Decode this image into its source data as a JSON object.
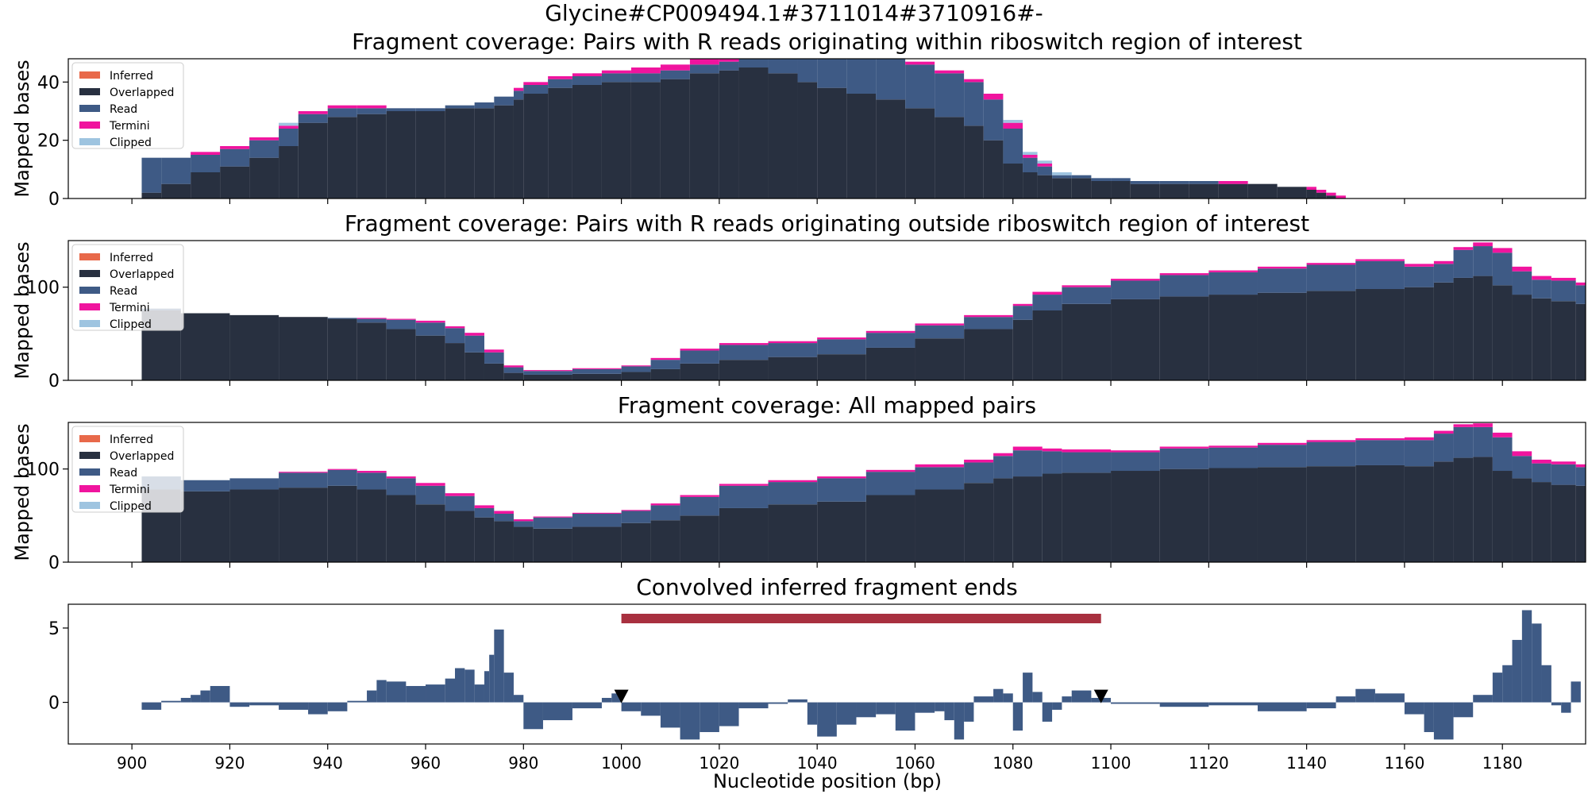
{
  "suptitle": "Glycine#CP009494.1#3711014#3710916#-",
  "colors": {
    "inferred": "#E8694A",
    "overlapped": "#283040",
    "read": "#3E5A85",
    "termini": "#F0149E",
    "clipped": "#9EC4E0",
    "region_bar": "#A8303F",
    "convolved": "#3E5A85",
    "marker": "#000000"
  },
  "legend_labels": [
    "Inferred",
    "Overlapped",
    "Read",
    "Termini",
    "Clipped"
  ],
  "xlabel": "Nucleotide position (bp)",
  "chart_data": [
    {
      "type": "area",
      "title": "Fragment coverage: Pairs with R reads originating within riboswitch region of interest",
      "ylabel": "Mapped bases",
      "xlim": [
        887,
        1197
      ],
      "ylim": [
        0,
        48
      ],
      "yticks": [
        0,
        20,
        40
      ],
      "xticks": [
        900,
        920,
        940,
        960,
        980,
        1000,
        1020,
        1040,
        1060,
        1080,
        1100,
        1120,
        1140,
        1160,
        1180
      ],
      "legend": "top-left",
      "x": [
        902,
        906,
        912,
        918,
        924,
        930,
        934,
        940,
        946,
        952,
        958,
        964,
        970,
        974,
        978,
        980,
        985,
        990,
        996,
        1002,
        1008,
        1014,
        1020,
        1024,
        1030,
        1036,
        1040,
        1046,
        1052,
        1058,
        1064,
        1070,
        1074,
        1078,
        1082,
        1085,
        1088,
        1092,
        1096,
        1100,
        1104,
        1110,
        1116,
        1122,
        1128,
        1134,
        1140,
        1142,
        1144,
        1146
      ],
      "overlapped": [
        2,
        5,
        9,
        11,
        14,
        18,
        26,
        28,
        29,
        30,
        30,
        31,
        31,
        32,
        34,
        36,
        38,
        39,
        40,
        40,
        41,
        43,
        44,
        45,
        43,
        40,
        38,
        36,
        34,
        31,
        28,
        25,
        20,
        12,
        9,
        8,
        7,
        7,
        6,
        6,
        5,
        5,
        5,
        5,
        5,
        4,
        3,
        2,
        1,
        0
      ],
      "read": [
        12,
        9,
        6,
        6,
        6,
        6,
        3,
        3,
        2,
        1,
        1,
        1,
        2,
        3,
        3,
        3,
        3,
        3,
        3,
        3,
        3,
        3,
        3,
        3,
        5,
        8,
        10,
        12,
        14,
        15,
        15,
        15,
        14,
        12,
        5,
        3,
        1,
        1,
        1,
        1,
        1,
        1,
        1,
        0,
        0,
        0,
        0,
        0,
        0,
        0
      ],
      "termini": [
        0,
        0,
        1,
        1,
        1,
        1,
        1,
        1,
        1,
        0,
        0,
        0,
        0,
        0,
        1,
        1,
        1,
        1,
        1,
        2,
        2,
        2,
        2,
        2,
        1,
        1,
        1,
        1,
        1,
        1,
        1,
        1,
        2,
        2,
        1,
        1,
        0,
        0,
        0,
        0,
        0,
        0,
        0,
        1,
        0,
        0,
        1,
        1,
        1,
        1
      ],
      "clipped": [
        0,
        0,
        0,
        0,
        0,
        1,
        0,
        0,
        0,
        0,
        0,
        0,
        0,
        0,
        0,
        0,
        0,
        0,
        0,
        0,
        0,
        0,
        0,
        0,
        0,
        0,
        0,
        0,
        0,
        0,
        0,
        0,
        0,
        1,
        1,
        1,
        1,
        0,
        0,
        0,
        0,
        0,
        0,
        0,
        0,
        0,
        0,
        0,
        0,
        0
      ],
      "inferred": [
        0,
        0,
        0,
        0,
        0,
        0,
        0,
        0,
        0,
        0,
        0,
        0,
        0,
        0,
        0,
        0,
        0,
        0,
        0,
        0,
        0,
        0,
        0,
        0,
        0,
        0,
        0,
        0,
        0,
        0,
        0,
        0,
        0,
        0,
        0,
        0,
        0,
        0,
        0,
        0,
        0,
        0,
        0,
        0,
        0,
        0,
        0,
        0,
        0,
        0
      ]
    },
    {
      "type": "area",
      "title": "Fragment coverage: Pairs with R reads originating outside riboswitch region of interest",
      "ylabel": "Mapped bases",
      "xlim": [
        887,
        1197
      ],
      "ylim": [
        0,
        150
      ],
      "yticks": [
        0,
        100
      ],
      "xticks": [
        900,
        920,
        940,
        960,
        980,
        1000,
        1020,
        1040,
        1060,
        1080,
        1100,
        1120,
        1140,
        1160,
        1180
      ],
      "legend": "top-left",
      "x": [
        902,
        910,
        920,
        930,
        940,
        946,
        952,
        958,
        964,
        968,
        972,
        976,
        980,
        990,
        1000,
        1006,
        1012,
        1020,
        1030,
        1040,
        1050,
        1060,
        1070,
        1080,
        1084,
        1090,
        1100,
        1110,
        1120,
        1130,
        1140,
        1150,
        1160,
        1166,
        1170,
        1174,
        1178,
        1182,
        1186,
        1190,
        1195
      ],
      "overlapped": [
        75,
        72,
        70,
        68,
        66,
        62,
        55,
        48,
        40,
        30,
        18,
        8,
        6,
        7,
        9,
        12,
        18,
        22,
        25,
        28,
        35,
        45,
        55,
        65,
        75,
        82,
        87,
        90,
        92,
        94,
        96,
        98,
        100,
        105,
        110,
        112,
        102,
        92,
        88,
        85,
        82
      ],
      "read": [
        2,
        0,
        0,
        0,
        1,
        4,
        10,
        14,
        16,
        18,
        12,
        6,
        4,
        5,
        6,
        10,
        14,
        16,
        15,
        16,
        16,
        14,
        13,
        15,
        17,
        18,
        20,
        23,
        24,
        26,
        28,
        30,
        22,
        20,
        30,
        32,
        35,
        25,
        20,
        22,
        20
      ],
      "termini": [
        0,
        0,
        0,
        0,
        0,
        1,
        1,
        2,
        2,
        3,
        3,
        2,
        1,
        1,
        1,
        2,
        2,
        2,
        2,
        2,
        2,
        2,
        2,
        2,
        3,
        2,
        2,
        2,
        2,
        2,
        2,
        2,
        3,
        3,
        3,
        4,
        5,
        5,
        4,
        3,
        3
      ],
      "clipped": [
        0,
        0,
        0,
        0,
        0,
        0,
        0,
        0,
        0,
        0,
        0,
        0,
        0,
        0,
        0,
        0,
        0,
        0,
        0,
        0,
        0,
        0,
        0,
        0,
        0,
        0,
        0,
        0,
        0,
        0,
        0,
        0,
        0,
        0,
        0,
        0,
        0,
        0,
        0,
        0,
        0
      ],
      "inferred": [
        0,
        0,
        0,
        0,
        0,
        0,
        0,
        0,
        0,
        0,
        0,
        0,
        0,
        0,
        0,
        0,
        0,
        0,
        0,
        0,
        0,
        0,
        0,
        0,
        0,
        0,
        0,
        0,
        0,
        0,
        0,
        0,
        0,
        0,
        0,
        0,
        0,
        0,
        0,
        0,
        0
      ]
    },
    {
      "type": "area",
      "title": "Fragment coverage: All mapped pairs",
      "ylabel": "Mapped bases",
      "xlim": [
        887,
        1197
      ],
      "ylim": [
        0,
        150
      ],
      "yticks": [
        0,
        100
      ],
      "xticks": [
        900,
        920,
        940,
        960,
        980,
        1000,
        1020,
        1040,
        1060,
        1080,
        1100,
        1120,
        1140,
        1160,
        1180
      ],
      "legend": "top-left",
      "x": [
        902,
        910,
        920,
        930,
        940,
        946,
        952,
        958,
        964,
        970,
        974,
        978,
        982,
        990,
        1000,
        1006,
        1012,
        1020,
        1030,
        1040,
        1050,
        1060,
        1070,
        1076,
        1080,
        1086,
        1090,
        1100,
        1110,
        1120,
        1130,
        1140,
        1150,
        1160,
        1166,
        1170,
        1174,
        1178,
        1182,
        1186,
        1190,
        1195
      ],
      "overlapped": [
        78,
        76,
        78,
        80,
        82,
        78,
        72,
        62,
        55,
        48,
        44,
        38,
        36,
        38,
        42,
        45,
        50,
        58,
        62,
        65,
        72,
        78,
        85,
        90,
        92,
        95,
        96,
        98,
        100,
        101,
        102,
        103,
        104,
        103,
        108,
        112,
        113,
        98,
        90,
        86,
        83,
        82
      ],
      "read": [
        14,
        12,
        12,
        16,
        17,
        18,
        18,
        20,
        16,
        10,
        8,
        6,
        12,
        14,
        13,
        16,
        20,
        24,
        24,
        25,
        25,
        24,
        22,
        24,
        28,
        24,
        22,
        20,
        22,
        22,
        24,
        26,
        27,
        28,
        30,
        33,
        32,
        36,
        24,
        20,
        22,
        20
      ],
      "termini": [
        0,
        0,
        0,
        1,
        1,
        2,
        2,
        3,
        3,
        3,
        3,
        2,
        1,
        1,
        1,
        2,
        2,
        2,
        2,
        2,
        2,
        3,
        3,
        3,
        4,
        3,
        3,
        2,
        2,
        2,
        2,
        2,
        2,
        3,
        3,
        3,
        4,
        5,
        5,
        4,
        3,
        3
      ],
      "clipped": [
        0,
        0,
        0,
        0,
        0,
        0,
        0,
        0,
        0,
        0,
        0,
        0,
        0,
        0,
        0,
        0,
        0,
        0,
        0,
        0,
        0,
        0,
        0,
        0,
        0,
        0,
        0,
        0,
        0,
        0,
        0,
        0,
        0,
        0,
        0,
        0,
        0,
        0,
        0,
        0,
        0,
        0
      ],
      "inferred": [
        0,
        0,
        0,
        0,
        0,
        0,
        0,
        0,
        0,
        0,
        0,
        0,
        0,
        0,
        0,
        0,
        0,
        0,
        0,
        0,
        0,
        0,
        0,
        0,
        0,
        0,
        0,
        0,
        0,
        0,
        0,
        0,
        0,
        0,
        0,
        0,
        0,
        0,
        0,
        0,
        0,
        0
      ]
    },
    {
      "type": "bar",
      "title": "Convolved inferred fragment ends",
      "xlabel": "Nucleotide position (bp)",
      "xlim": [
        887,
        1197
      ],
      "ylim": [
        -2.8,
        6.6
      ],
      "yticks": [
        0,
        5
      ],
      "xticks": [
        900,
        920,
        940,
        960,
        980,
        1000,
        1020,
        1040,
        1060,
        1080,
        1100,
        1120,
        1140,
        1160,
        1180
      ],
      "region_of_interest": [
        1000,
        1098
      ],
      "markers_x": [
        1000,
        1098
      ],
      "x": [
        902,
        906,
        910,
        912,
        914,
        916,
        920,
        924,
        930,
        936,
        940,
        944,
        948,
        950,
        952,
        956,
        960,
        964,
        966,
        968,
        970,
        972,
        973,
        974,
        976,
        978,
        980,
        984,
        990,
        996,
        998,
        1000,
        1004,
        1008,
        1012,
        1016,
        1020,
        1024,
        1030,
        1034,
        1038,
        1040,
        1044,
        1048,
        1052,
        1056,
        1060,
        1064,
        1066,
        1068,
        1070,
        1072,
        1076,
        1078,
        1080,
        1082,
        1084,
        1086,
        1088,
        1090,
        1092,
        1096,
        1100,
        1110,
        1120,
        1130,
        1140,
        1146,
        1150,
        1154,
        1160,
        1164,
        1166,
        1170,
        1174,
        1178,
        1180,
        1182,
        1184,
        1186,
        1188,
        1190,
        1192,
        1194
      ],
      "values": [
        -0.5,
        0.1,
        0.3,
        0.5,
        0.8,
        1.1,
        -0.3,
        -0.2,
        -0.5,
        -0.8,
        -0.6,
        0.1,
        0.8,
        1.5,
        1.4,
        1.1,
        1.2,
        1.6,
        2.3,
        2.2,
        1.2,
        2.1,
        3.2,
        4.9,
        2.0,
        0.5,
        -1.8,
        -1.2,
        -0.4,
        0.3,
        0.6,
        -0.6,
        -0.9,
        -1.7,
        -2.5,
        -2.0,
        -1.6,
        -0.4,
        -0.1,
        0.2,
        -1.5,
        -2.3,
        -1.5,
        -1.0,
        -0.8,
        -1.9,
        -0.7,
        -0.6,
        -1.2,
        -2.5,
        -1.3,
        0.4,
        0.9,
        0.6,
        -1.9,
        2.0,
        0.7,
        -1.3,
        -0.5,
        0.4,
        0.8,
        0.3,
        -0.1,
        -0.3,
        -0.2,
        -0.6,
        -0.4,
        0.4,
        0.9,
        0.6,
        -0.8,
        -2.0,
        -2.5,
        -1.0,
        0.5,
        2.0,
        2.5,
        4.2,
        6.2,
        5.3,
        2.5,
        -0.2,
        -0.7,
        1.4
      ]
    }
  ]
}
